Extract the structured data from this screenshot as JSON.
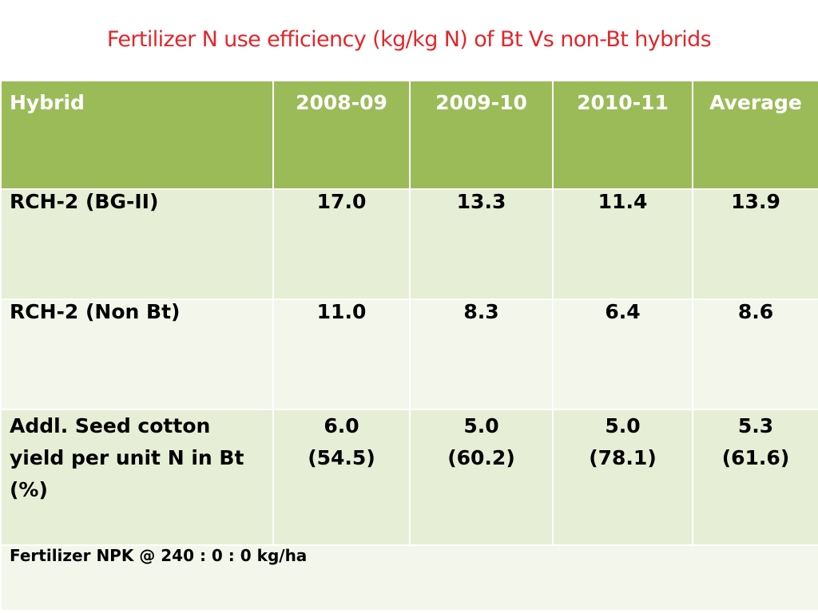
{
  "title": "Fertilizer N use efficiency  (kg/kg N) of Bt Vs non-Bt hybrids",
  "table": {
    "headers": [
      "Hybrid",
      "2008-09",
      "2009-10",
      "2010-11",
      "Average"
    ],
    "rows": [
      {
        "label": "RCH-2 (BG-II)",
        "values": [
          "17.0",
          "13.3",
          "11.4",
          "13.9"
        ]
      },
      {
        "label": "RCH-2 (Non Bt)",
        "values": [
          "11.0",
          "8.3",
          "6.4",
          "8.6"
        ]
      },
      {
        "label_lines": [
          "Addl. Seed cotton",
          "yield per unit N in Bt",
          "(%)"
        ],
        "values": [
          "6.0",
          "5.0",
          "5.0",
          "5.3"
        ],
        "percents": [
          "(54.5)",
          "(60.2)",
          "(78.1)",
          "(61.6)"
        ]
      }
    ],
    "footnote": "Fertilizer NPK @ 240 : 0 : 0  kg/ha"
  },
  "colors": {
    "title": "#e3262b",
    "header_bg": "#9bbb59",
    "row_dark": "#e6eed5",
    "row_light": "#f2f6eb"
  }
}
